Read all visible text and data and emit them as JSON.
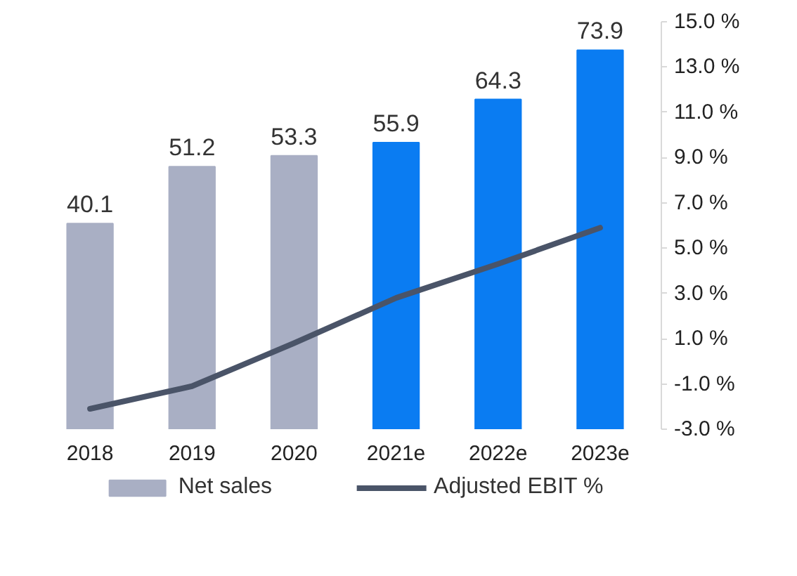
{
  "chart_data": {
    "type": "bar",
    "categories": [
      "2018",
      "2019",
      "2020",
      "2021e",
      "2022e",
      "2023e"
    ],
    "series": [
      {
        "name": "Net sales",
        "color": "#a9afc4",
        "colors": [
          "#a9afc4",
          "#a9afc4",
          "#a9afc4",
          "#0a7cf2",
          "#0a7cf2",
          "#0a7cf2"
        ],
        "values": [
          40.1,
          51.2,
          53.3,
          55.9,
          64.3,
          73.9
        ],
        "value_labels": [
          "40.1",
          "51.2",
          "53.3",
          "55.9",
          "64.3",
          "73.9"
        ]
      },
      {
        "name": "Adjusted EBIT %",
        "type": "line",
        "axis": "y2",
        "color": "#4a5468",
        "values": [
          -2.1,
          -1.1,
          0.8,
          2.8,
          4.3,
          5.9
        ]
      }
    ],
    "y2lim": [
      -3,
      15
    ],
    "y2ticks": [
      {
        "value": -3,
        "label": "-3.0 %"
      },
      {
        "value": -1,
        "label": "-1.0 %"
      },
      {
        "value": 1,
        "label": "1.0 %"
      },
      {
        "value": 3,
        "label": "3.0 %"
      },
      {
        "value": 5,
        "label": "5.0 %"
      },
      {
        "value": 7,
        "label": "7.0 %"
      },
      {
        "value": 9,
        "label": "9.0 %"
      },
      {
        "value": 11,
        "label": "11.0 %"
      },
      {
        "value": 13,
        "label": "13.0 %"
      },
      {
        "value": 15,
        "label": "15.0 %"
      }
    ],
    "legend": "bottom"
  }
}
